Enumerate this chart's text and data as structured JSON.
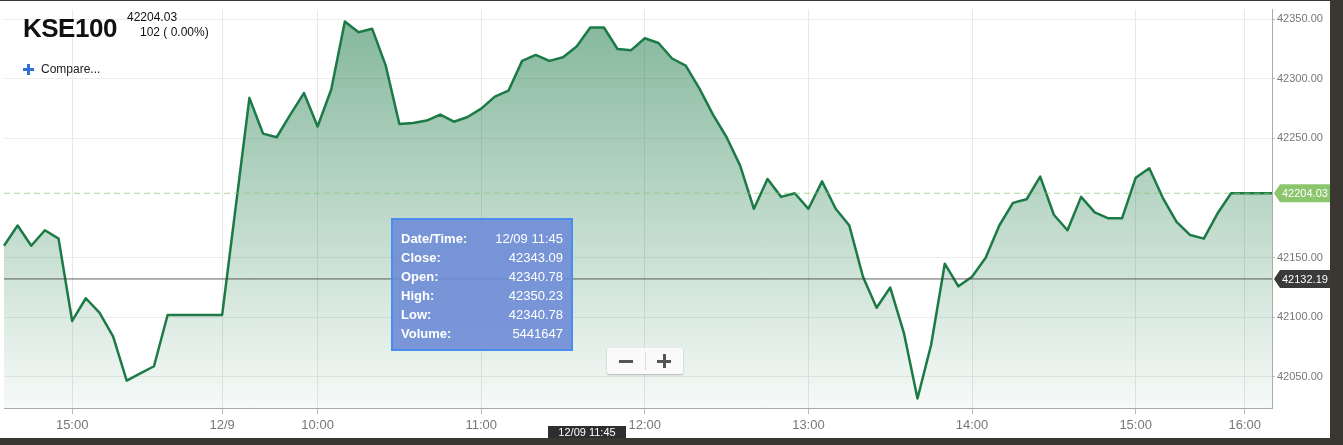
{
  "chart_data": {
    "type": "area",
    "title": "KSE100",
    "subtitle": "42204.03",
    "annotations": [
      "102 ( 0.00%)",
      "Compare...",
      "12/09 11:45",
      "Date/Time: 12/09 11:45",
      "Close: 42343.09",
      "Open: 42340.78",
      "High: 42350.23",
      "Low: 42340.78",
      "Volume: 5441647"
    ],
    "categories": [
      null,
      null,
      null,
      null,
      null,
      "15:00",
      null,
      null,
      null,
      null,
      null,
      null,
      null,
      null,
      null,
      null,
      "12/9",
      null,
      null,
      null,
      null,
      null,
      null,
      "10:00",
      null,
      null,
      null,
      null,
      null,
      null,
      null,
      null,
      null,
      null,
      null,
      "11:00",
      null,
      null,
      null,
      null,
      null,
      null,
      null,
      null,
      null,
      null,
      null,
      "12:00",
      null,
      null,
      null,
      null,
      null,
      null,
      null,
      null,
      null,
      null,
      null,
      "13:00",
      null,
      null,
      null,
      null,
      null,
      null,
      null,
      null,
      null,
      null,
      null,
      "14:00",
      null,
      null,
      null,
      null,
      null,
      null,
      null,
      null,
      null,
      null,
      null,
      "15:00",
      null,
      null,
      null,
      null,
      null,
      null,
      null,
      "16:00",
      null,
      null
    ],
    "series": [
      {
        "color": "#1b7a46",
        "values": [
          42160,
          42177,
          42160,
          42173,
          42166,
          42097,
          42116,
          42104,
          42084,
          42047,
          42053,
          42059,
          42102,
          42102,
          42102,
          42102,
          42102,
          null,
          42284,
          42254,
          42251,
          42270,
          42288,
          42260,
          42291,
          42348,
          42339,
          42342,
          42311,
          42262,
          42263,
          42265,
          42270,
          42264,
          42268,
          42275,
          42285,
          42290,
          42315,
          42320,
          42315,
          42318,
          42327,
          42343,
          42343,
          42325,
          42324,
          42334,
          42330,
          42317,
          42311,
          42292,
          42270,
          42251,
          42227,
          42191,
          42216,
          42201,
          42204,
          42191,
          42214,
          42191,
          42177,
          42134,
          42108,
          42125,
          42087,
          42032,
          42077,
          42145,
          42126,
          42134,
          42150,
          42177,
          42196,
          42199,
          42218,
          42186,
          42173,
          42201,
          42188,
          42183,
          42183,
          42217,
          42225,
          42200,
          42180,
          42169,
          42166,
          42187,
          42204,
          42204,
          42204,
          42204
        ]
      }
    ],
    "ylim": [
      42024,
      42358
    ],
    "yticks": [
      {
        "value": 42050,
        "label": "42050.00"
      },
      {
        "value": 42100,
        "label": "42100.00"
      },
      {
        "value": 42150,
        "label": "42150.00"
      },
      {
        "value": 42250,
        "label": "42250.00"
      },
      {
        "value": 42300,
        "label": "42300.00"
      },
      {
        "value": 42350,
        "label": "42350.00"
      }
    ],
    "ref_lines": [
      {
        "axis": "y",
        "value": 42204.03,
        "label": "42204.03",
        "color": "#8cc66c",
        "line_style": "dashed"
      },
      {
        "axis": "y",
        "value": 42132.19,
        "label": "42132.19",
        "color": "#3a3a3a",
        "line_style": "solid"
      }
    ],
    "grid": true,
    "marker": "none",
    "line_style": "solid"
  }
}
